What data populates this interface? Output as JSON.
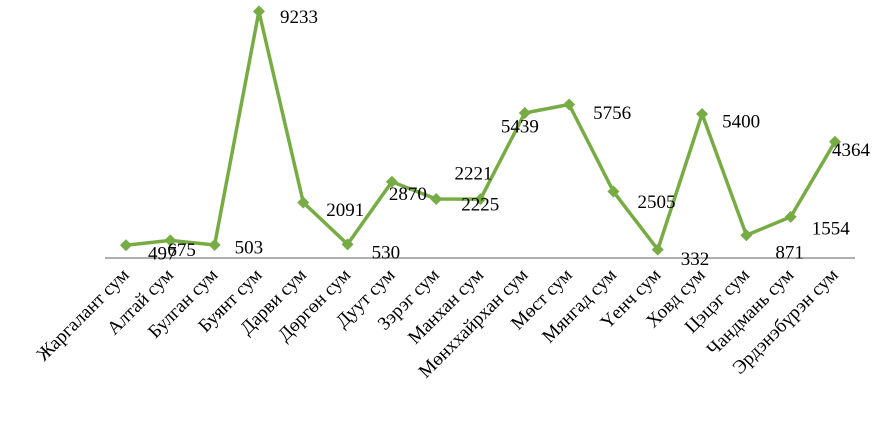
{
  "chart_data": {
    "type": "line",
    "categories": [
      "Жаргалант сум",
      "Алтай сум",
      "Булган сум",
      "Буянт сум",
      "Дарви сум",
      "Дөргөн сум",
      "Дуут сум",
      "Зэрэг сум",
      "Манхан сум",
      "Мөнххайрхан сум",
      "Мөст сум",
      "Мянгад сум",
      "Үенч сум",
      "Ховд сум",
      "Цэцэг сум",
      "Чандмань сум",
      "Эрдэнэбүрэн сум"
    ],
    "series": [
      {
        "values": [
          497,
          675,
          503,
          9233,
          2091,
          530,
          2870,
          2225,
          2221,
          5439,
          5756,
          2505,
          332,
          5400,
          871,
          1554,
          4364
        ],
        "labels": [
          "497",
          "675",
          "503",
          "9233",
          "2091",
          "530",
          "2870",
          "2225",
          "2221",
          "5439",
          "5756",
          "2505",
          "332",
          "5400",
          "871",
          "1554",
          "4364"
        ],
        "color": "#77ac44"
      }
    ],
    "axis_color": "#7f7f7f",
    "grid": false,
    "legend": "none"
  }
}
